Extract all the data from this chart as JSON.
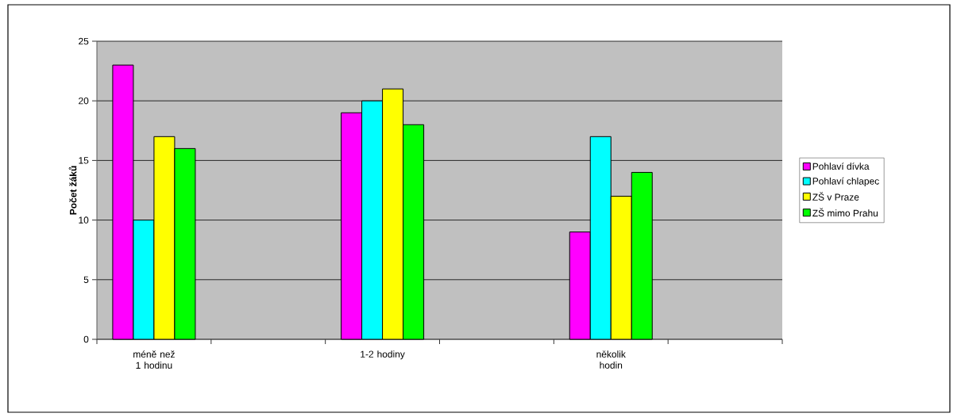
{
  "chart_data": {
    "type": "bar",
    "ylabel": "Počet žáků",
    "categories": [
      "méně než 1 hodinu",
      null,
      "1-2 hodiny",
      null,
      "několik hodin",
      null
    ],
    "series": [
      {
        "name": "Pohlaví dívka",
        "color": "#ff00ff",
        "values": [
          23,
          null,
          19,
          null,
          9,
          null
        ]
      },
      {
        "name": "Pohlaví chlapec",
        "color": "#00ffff",
        "values": [
          10,
          null,
          20,
          null,
          17,
          null
        ]
      },
      {
        "name": "ZŠ v Praze",
        "color": "#ffff00",
        "values": [
          17,
          null,
          21,
          null,
          12,
          null
        ]
      },
      {
        "name": "ZŠ mimo Prahu",
        "color": "#00ff00",
        "values": [
          16,
          null,
          18,
          null,
          14,
          null
        ]
      }
    ],
    "ylim": [
      0,
      25
    ],
    "yticks": [
      0,
      5,
      10,
      15,
      20,
      25
    ],
    "grid": "y",
    "legend": "right"
  }
}
